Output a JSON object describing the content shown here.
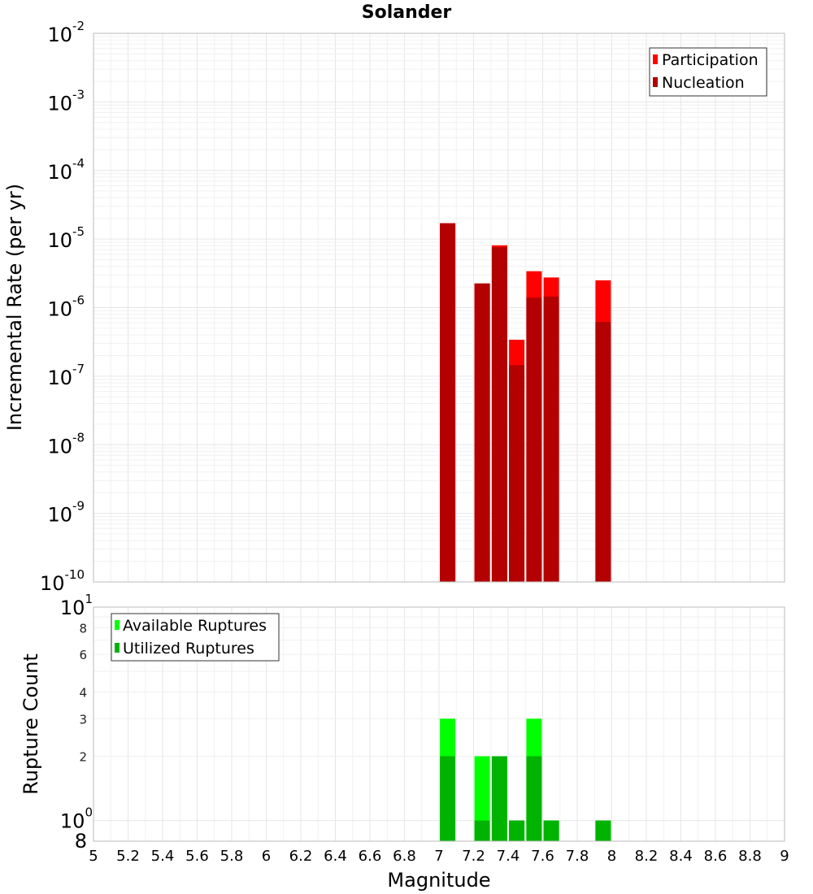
{
  "chart_data": [
    {
      "type": "bar",
      "title": "Solander",
      "xlabel": "",
      "ylabel": "Incremental Rate (per yr)",
      "yscale": "log",
      "ylim": [
        1e-10,
        0.01
      ],
      "xlim": [
        5,
        9
      ],
      "grid": true,
      "legend_position": "top-right",
      "y_tick_labels": [
        {
          "base": "10",
          "exp": "-10",
          "value": 1e-10
        },
        {
          "base": "10",
          "exp": "-9",
          "value": 1e-09
        },
        {
          "base": "10",
          "exp": "-8",
          "value": 1e-08
        },
        {
          "base": "10",
          "exp": "-7",
          "value": 1e-07
        },
        {
          "base": "10",
          "exp": "-6",
          "value": 1e-06
        },
        {
          "base": "10",
          "exp": "-5",
          "value": 1e-05
        },
        {
          "base": "10",
          "exp": "-4",
          "value": 0.0001
        },
        {
          "base": "10",
          "exp": "-3",
          "value": 0.001
        },
        {
          "base": "10",
          "exp": "-2",
          "value": 0.01
        }
      ],
      "series": [
        {
          "name": "Participation",
          "color": "#ff0000",
          "points": [
            {
              "x": 7.05,
              "y": 1.7e-05
            },
            {
              "x": 7.25,
              "y": 2.25e-06
            },
            {
              "x": 7.35,
              "y": 8.1e-06
            },
            {
              "x": 7.45,
              "y": 3.4e-07
            },
            {
              "x": 7.55,
              "y": 3.4e-06
            },
            {
              "x": 7.65,
              "y": 2.75e-06
            },
            {
              "x": 7.95,
              "y": 2.5e-06
            }
          ]
        },
        {
          "name": "Nucleation",
          "color": "#b30000",
          "points": [
            {
              "x": 7.05,
              "y": 1.7e-05
            },
            {
              "x": 7.25,
              "y": 2.25e-06
            },
            {
              "x": 7.35,
              "y": 7.6e-06
            },
            {
              "x": 7.45,
              "y": 1.45e-07
            },
            {
              "x": 7.55,
              "y": 1.4e-06
            },
            {
              "x": 7.65,
              "y": 1.45e-06
            },
            {
              "x": 7.95,
              "y": 6.2e-07
            }
          ]
        }
      ]
    },
    {
      "type": "bar",
      "title": "",
      "xlabel": "Magnitude",
      "ylabel": "Rupture Count",
      "yscale": "log",
      "ylim": [
        0.8,
        10
      ],
      "xlim": [
        5,
        9
      ],
      "grid": true,
      "legend_position": "top-left",
      "x_tick_labels": [
        "5",
        "5.2",
        "5.4",
        "5.6",
        "5.8",
        "6",
        "6.2",
        "6.4",
        "6.6",
        "6.8",
        "7",
        "7.2",
        "7.4",
        "7.6",
        "7.8",
        "8",
        "8.2",
        "8.4",
        "8.6",
        "8.8",
        "9"
      ],
      "y_tick_labels_major": [
        {
          "base": "10",
          "exp": "1",
          "value": 10
        },
        {
          "base": "10",
          "exp": "0",
          "value": 1
        }
      ],
      "y_tick_labels_minor": [
        {
          "label": "8",
          "value": 8
        },
        {
          "label": "6",
          "value": 6
        },
        {
          "label": "4",
          "value": 4
        },
        {
          "label": "3",
          "value": 3
        },
        {
          "label": "2",
          "value": 2
        }
      ],
      "y_bottom_label": {
        "label": "8",
        "value": 0.8
      },
      "series": [
        {
          "name": "Available Ruptures",
          "color": "#00ff00",
          "points": [
            {
              "x": 7.05,
              "y": 3
            },
            {
              "x": 7.25,
              "y": 2
            },
            {
              "x": 7.35,
              "y": 2
            },
            {
              "x": 7.45,
              "y": 1
            },
            {
              "x": 7.55,
              "y": 3
            },
            {
              "x": 7.65,
              "y": 1
            },
            {
              "x": 7.95,
              "y": 1
            }
          ]
        },
        {
          "name": "Utilized Ruptures",
          "color": "#00b300",
          "points": [
            {
              "x": 7.05,
              "y": 2
            },
            {
              "x": 7.25,
              "y": 1
            },
            {
              "x": 7.35,
              "y": 2
            },
            {
              "x": 7.45,
              "y": 1
            },
            {
              "x": 7.55,
              "y": 2
            },
            {
              "x": 7.65,
              "y": 1
            },
            {
              "x": 7.95,
              "y": 1
            }
          ]
        }
      ]
    }
  ]
}
